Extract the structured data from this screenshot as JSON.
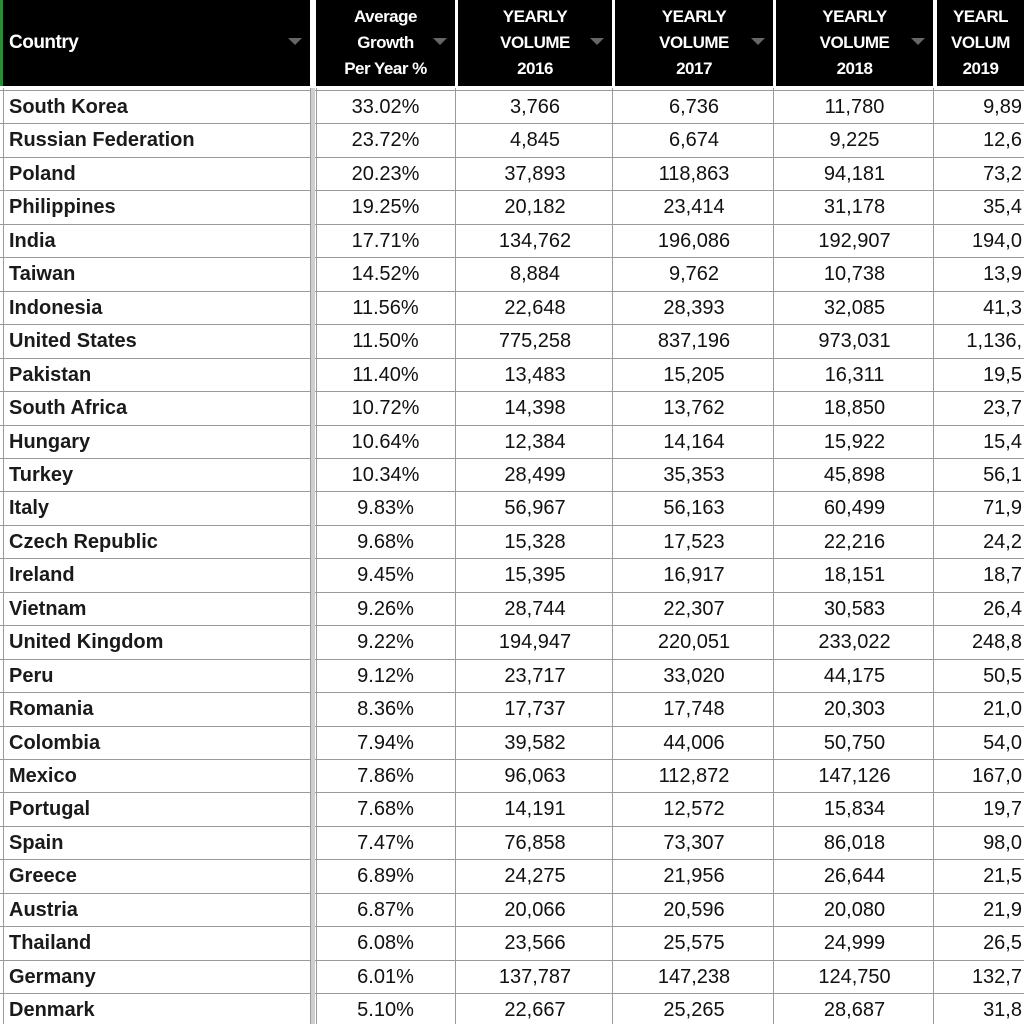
{
  "table": {
    "header": [
      [
        "Country"
      ],
      [
        "Average",
        "Growth",
        "Per Year %"
      ],
      [
        "YEARLY",
        "VOLUME",
        "2016"
      ],
      [
        "YEARLY",
        "VOLUME",
        "2017"
      ],
      [
        "YEARLY",
        "VOLUME",
        "2018"
      ],
      [
        "YEARL",
        "VOLUM",
        "2019"
      ]
    ],
    "rows": [
      [
        "South Korea",
        "33.02%",
        "3,766",
        "6,736",
        "11,780",
        "9,89"
      ],
      [
        "Russian Federation",
        "23.72%",
        "4,845",
        "6,674",
        "9,225",
        "12,6"
      ],
      [
        "Poland",
        "20.23%",
        "37,893",
        "118,863",
        "94,181",
        "73,2"
      ],
      [
        "Philippines",
        "19.25%",
        "20,182",
        "23,414",
        "31,178",
        "35,4"
      ],
      [
        "India",
        "17.71%",
        "134,762",
        "196,086",
        "192,907",
        "194,0"
      ],
      [
        "Taiwan",
        "14.52%",
        "8,884",
        "9,762",
        "10,738",
        "13,9"
      ],
      [
        "Indonesia",
        "11.56%",
        "22,648",
        "28,393",
        "32,085",
        "41,3"
      ],
      [
        "United States",
        "11.50%",
        "775,258",
        "837,196",
        "973,031",
        "1,136,"
      ],
      [
        "Pakistan",
        "11.40%",
        "13,483",
        "15,205",
        "16,311",
        "19,5"
      ],
      [
        "South Africa",
        "10.72%",
        "14,398",
        "13,762",
        "18,850",
        "23,7"
      ],
      [
        "Hungary",
        "10.64%",
        "12,384",
        "14,164",
        "15,922",
        "15,4"
      ],
      [
        "Turkey",
        "10.34%",
        "28,499",
        "35,353",
        "45,898",
        "56,1"
      ],
      [
        "Italy",
        "9.83%",
        "56,967",
        "56,163",
        "60,499",
        "71,9"
      ],
      [
        "Czech Republic",
        "9.68%",
        "15,328",
        "17,523",
        "22,216",
        "24,2"
      ],
      [
        "Ireland",
        "9.45%",
        "15,395",
        "16,917",
        "18,151",
        "18,7"
      ],
      [
        "Vietnam",
        "9.26%",
        "28,744",
        "22,307",
        "30,583",
        "26,4"
      ],
      [
        "United Kingdom",
        "9.22%",
        "194,947",
        "220,051",
        "233,022",
        "248,8"
      ],
      [
        "Peru",
        "9.12%",
        "23,717",
        "33,020",
        "44,175",
        "50,5"
      ],
      [
        "Romania",
        "8.36%",
        "17,737",
        "17,748",
        "20,303",
        "21,0"
      ],
      [
        "Colombia",
        "7.94%",
        "39,582",
        "44,006",
        "50,750",
        "54,0"
      ],
      [
        "Mexico",
        "7.86%",
        "96,063",
        "112,872",
        "147,126",
        "167,0"
      ],
      [
        "Portugal",
        "7.68%",
        "14,191",
        "12,572",
        "15,834",
        "19,7"
      ],
      [
        "Spain",
        "7.47%",
        "76,858",
        "73,307",
        "86,018",
        "98,0"
      ],
      [
        "Greece",
        "6.89%",
        "24,275",
        "21,956",
        "26,644",
        "21,5"
      ],
      [
        "Austria",
        "6.87%",
        "20,066",
        "20,596",
        "20,080",
        "21,9"
      ],
      [
        "Thailand",
        "6.08%",
        "23,566",
        "25,575",
        "24,999",
        "26,5"
      ],
      [
        "Germany",
        "6.01%",
        "137,787",
        "147,238",
        "124,750",
        "132,7"
      ],
      [
        "Denmark",
        "5.10%",
        "22,667",
        "25,265",
        "28,687",
        "31,8"
      ]
    ]
  }
}
